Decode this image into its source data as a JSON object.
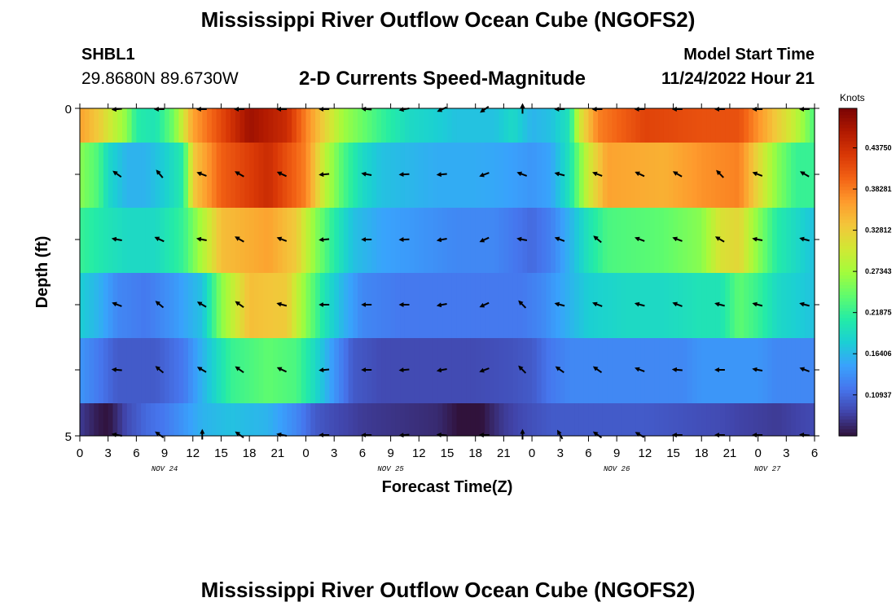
{
  "page": {
    "title": "Mississippi River Outflow Ocean Cube (NGOFS2)",
    "repeated_title": "Mississippi River Outflow Ocean Cube (NGOFS2)",
    "station": "SHBL1",
    "coords": "29.8680N  89.6730W",
    "subtitle": "2-D Currents Speed-Magnitude",
    "model_start_label": "Model Start Time",
    "model_start_value": "11/24/2022 Hour 21"
  },
  "chart_data": {
    "type": "heatmap",
    "title": "2-D Currents Speed-Magnitude",
    "xlabel": "Forecast Time(Z)",
    "ylabel": "Depth (ft)",
    "ylim": [
      0,
      5
    ],
    "y_ticks": [
      "0",
      "5"
    ],
    "x_ticks": [
      "0",
      "3",
      "6",
      "9",
      "12",
      "15",
      "18",
      "21",
      "0",
      "3",
      "6",
      "9",
      "12",
      "15",
      "18",
      "21",
      "0",
      "3",
      "6",
      "9",
      "12",
      "15",
      "18",
      "21",
      "0",
      "3",
      "6"
    ],
    "date_labels": [
      {
        "label": "NOV 24",
        "hour": 9
      },
      {
        "label": "NOV 25",
        "hour": 33
      },
      {
        "label": "NOV 26",
        "hour": 57
      },
      {
        "label": "NOV 27",
        "hour": 73
      }
    ],
    "x_range_hours": [
      0,
      78
    ],
    "colorbar": {
      "unit": "Knots",
      "ticks": [
        "0.43750",
        "0.38281",
        "0.32812",
        "0.27343",
        "0.21875",
        "0.16406",
        "0.10937"
      ],
      "tick_values": [
        0.4375,
        0.38281,
        0.32812,
        0.27343,
        0.21875,
        0.16406,
        0.10937
      ],
      "range": [
        0.055,
        0.49
      ],
      "colormap": [
        "#30123b",
        "#4145ab",
        "#4675ed",
        "#39a2fc",
        "#1bcfd4",
        "#24eca6",
        "#61fc6c",
        "#a4fc3b",
        "#d1e834",
        "#f3c63a",
        "#fe9b2d",
        "#f36315",
        "#d93806",
        "#b11901",
        "#7a0403"
      ]
    },
    "layers": [
      {
        "depth_band": "0-0.5 ft",
        "keys": [
          [
            0,
            0.36
          ],
          [
            2,
            0.33
          ],
          [
            5,
            0.26
          ],
          [
            6,
            0.21
          ],
          [
            8,
            0.2
          ],
          [
            10,
            0.25
          ],
          [
            12,
            0.36
          ],
          [
            18,
            0.47
          ],
          [
            22,
            0.44
          ],
          [
            25,
            0.35
          ],
          [
            28,
            0.27
          ],
          [
            32,
            0.22
          ],
          [
            35,
            0.19
          ],
          [
            38,
            0.18
          ],
          [
            40,
            0.17
          ],
          [
            44,
            0.17
          ],
          [
            46,
            0.19
          ],
          [
            48,
            0.16
          ],
          [
            50,
            0.17
          ],
          [
            52,
            0.2
          ],
          [
            53,
            0.3
          ],
          [
            55,
            0.38
          ],
          [
            60,
            0.42
          ],
          [
            66,
            0.41
          ],
          [
            70,
            0.41
          ],
          [
            72,
            0.37
          ],
          [
            74,
            0.33
          ],
          [
            76,
            0.29
          ],
          [
            78,
            0.23
          ]
        ]
      },
      {
        "depth_band": "0.5-1.5 ft",
        "keys": [
          [
            0,
            0.26
          ],
          [
            2,
            0.23
          ],
          [
            3,
            0.19
          ],
          [
            5,
            0.16
          ],
          [
            7,
            0.16
          ],
          [
            9,
            0.18
          ],
          [
            11,
            0.21
          ],
          [
            12,
            0.33
          ],
          [
            15,
            0.4
          ],
          [
            20,
            0.44
          ],
          [
            24,
            0.38
          ],
          [
            26,
            0.29
          ],
          [
            28,
            0.23
          ],
          [
            30,
            0.19
          ],
          [
            32,
            0.17
          ],
          [
            34,
            0.165
          ],
          [
            38,
            0.155
          ],
          [
            42,
            0.155
          ],
          [
            45,
            0.15
          ],
          [
            48,
            0.14
          ],
          [
            50,
            0.15
          ],
          [
            52,
            0.2
          ],
          [
            54,
            0.3
          ],
          [
            56,
            0.36
          ],
          [
            62,
            0.35
          ],
          [
            66,
            0.37
          ],
          [
            70,
            0.38
          ],
          [
            72,
            0.32
          ],
          [
            74,
            0.26
          ],
          [
            76,
            0.22
          ],
          [
            78,
            0.22
          ]
        ]
      },
      {
        "depth_band": "1.5-2.5 ft",
        "keys": [
          [
            0,
            0.22
          ],
          [
            3,
            0.2
          ],
          [
            5,
            0.19
          ],
          [
            8,
            0.19
          ],
          [
            11,
            0.22
          ],
          [
            13,
            0.28
          ],
          [
            15,
            0.34
          ],
          [
            20,
            0.36
          ],
          [
            23,
            0.33
          ],
          [
            25,
            0.26
          ],
          [
            27,
            0.21
          ],
          [
            29,
            0.17
          ],
          [
            32,
            0.15
          ],
          [
            36,
            0.14
          ],
          [
            40,
            0.13
          ],
          [
            44,
            0.13
          ],
          [
            46,
            0.12
          ],
          [
            48,
            0.11
          ],
          [
            50,
            0.125
          ],
          [
            52,
            0.16
          ],
          [
            54,
            0.2
          ],
          [
            56,
            0.23
          ],
          [
            62,
            0.24
          ],
          [
            66,
            0.26
          ],
          [
            68,
            0.31
          ],
          [
            70,
            0.32
          ],
          [
            72,
            0.26
          ],
          [
            74,
            0.21
          ],
          [
            76,
            0.19
          ],
          [
            78,
            0.17
          ]
        ]
      },
      {
        "depth_band": "2.5-3.5 ft",
        "keys": [
          [
            0,
            0.18
          ],
          [
            2,
            0.16
          ],
          [
            4,
            0.13
          ],
          [
            7,
            0.12
          ],
          [
            10,
            0.14
          ],
          [
            13,
            0.17
          ],
          [
            15,
            0.26
          ],
          [
            18,
            0.34
          ],
          [
            22,
            0.33
          ],
          [
            24,
            0.26
          ],
          [
            26,
            0.2
          ],
          [
            28,
            0.16
          ],
          [
            30,
            0.13
          ],
          [
            34,
            0.12
          ],
          [
            40,
            0.12
          ],
          [
            44,
            0.12
          ],
          [
            47,
            0.12
          ],
          [
            49,
            0.13
          ],
          [
            51,
            0.15
          ],
          [
            54,
            0.18
          ],
          [
            58,
            0.19
          ],
          [
            62,
            0.19
          ],
          [
            66,
            0.2
          ],
          [
            68,
            0.2
          ],
          [
            70,
            0.24
          ],
          [
            72,
            0.22
          ],
          [
            74,
            0.19
          ],
          [
            76,
            0.18
          ],
          [
            78,
            0.17
          ]
        ]
      },
      {
        "depth_band": "3.5-4.5 ft",
        "keys": [
          [
            0,
            0.14
          ],
          [
            2,
            0.12
          ],
          [
            4,
            0.1
          ],
          [
            8,
            0.1
          ],
          [
            11,
            0.12
          ],
          [
            13,
            0.16
          ],
          [
            16,
            0.22
          ],
          [
            20,
            0.24
          ],
          [
            23,
            0.23
          ],
          [
            25,
            0.19
          ],
          [
            27,
            0.14
          ],
          [
            29,
            0.1
          ],
          [
            32,
            0.09
          ],
          [
            38,
            0.09
          ],
          [
            42,
            0.09
          ],
          [
            46,
            0.095
          ],
          [
            48,
            0.1
          ],
          [
            50,
            0.12
          ],
          [
            52,
            0.13
          ],
          [
            56,
            0.13
          ],
          [
            60,
            0.13
          ],
          [
            64,
            0.13
          ],
          [
            66,
            0.14
          ],
          [
            70,
            0.14
          ],
          [
            72,
            0.14
          ],
          [
            74,
            0.13
          ],
          [
            76,
            0.13
          ],
          [
            78,
            0.13
          ]
        ]
      },
      {
        "depth_band": "4.5-5 ft",
        "keys": [
          [
            0,
            0.08
          ],
          [
            2,
            0.06
          ],
          [
            3,
            0.055
          ],
          [
            5,
            0.09
          ],
          [
            7,
            0.11
          ],
          [
            9,
            0.12
          ],
          [
            11,
            0.14
          ],
          [
            13,
            0.16
          ],
          [
            16,
            0.17
          ],
          [
            20,
            0.16
          ],
          [
            23,
            0.13
          ],
          [
            25,
            0.1
          ],
          [
            27,
            0.09
          ],
          [
            30,
            0.08
          ],
          [
            34,
            0.075
          ],
          [
            38,
            0.07
          ],
          [
            41,
            0.05
          ],
          [
            42,
            0.045
          ],
          [
            43,
            0.06
          ],
          [
            45,
            0.08
          ],
          [
            47,
            0.09
          ],
          [
            50,
            0.1
          ],
          [
            52,
            0.1
          ],
          [
            56,
            0.1
          ],
          [
            60,
            0.1
          ],
          [
            64,
            0.095
          ],
          [
            68,
            0.09
          ],
          [
            70,
            0.085
          ],
          [
            74,
            0.08
          ],
          [
            76,
            0.085
          ],
          [
            78,
            0.09
          ]
        ]
      }
    ],
    "vectors": {
      "description": "current direction arrows per depth row, angle in degrees (0 = east, 90 = north)",
      "hours": [
        4,
        8.5,
        13,
        17,
        21.5,
        26,
        30.5,
        34.5,
        38.5,
        43,
        47,
        51,
        55,
        59.5,
        63.5,
        68,
        72,
        77
      ],
      "rows": [
        {
          "depth_band": "0-0.5 ft",
          "angles": [
            185,
            180,
            180,
            180,
            180,
            180,
            175,
            190,
            205,
            215,
            90,
            180,
            180,
            180,
            180,
            180,
            180,
            180
          ]
        },
        {
          "depth_band": "0.5-1.5 ft",
          "angles": [
            145,
            130,
            160,
            150,
            155,
            185,
            170,
            183,
            185,
            200,
            160,
            165,
            160,
            155,
            150,
            135,
            160,
            150
          ]
        },
        {
          "depth_band": "1.5-2.5 ft",
          "angles": [
            170,
            155,
            170,
            150,
            160,
            185,
            180,
            182,
            190,
            205,
            170,
            160,
            140,
            160,
            160,
            150,
            170,
            165
          ]
        },
        {
          "depth_band": "2.5-3.5 ft",
          "angles": [
            160,
            140,
            150,
            145,
            165,
            180,
            180,
            180,
            190,
            205,
            135,
            165,
            160,
            165,
            160,
            165,
            165,
            165
          ]
        },
        {
          "depth_band": "3.5-4.5 ft",
          "angles": [
            175,
            140,
            150,
            145,
            155,
            185,
            180,
            185,
            190,
            200,
            135,
            145,
            145,
            160,
            175,
            180,
            170,
            160
          ]
        },
        {
          "depth_band": "4.5-5 ft",
          "angles": [
            170,
            145,
            90,
            145,
            170,
            180,
            180,
            185,
            175,
            180,
            90,
            120,
            145,
            150,
            180,
            180,
            180,
            175
          ]
        }
      ]
    }
  }
}
